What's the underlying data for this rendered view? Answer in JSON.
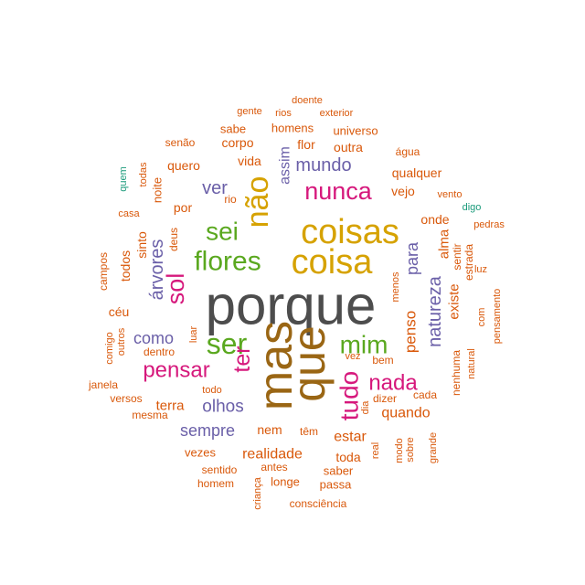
{
  "chart_data": {
    "type": "wordcloud",
    "title": "",
    "colors": {
      "gray": "#4d4d4d",
      "gold": "#d6a200",
      "brown": "#9a6614",
      "pink": "#d6187c",
      "green": "#5aa81f",
      "purple": "#6a5fa8",
      "orange": "#d9580a",
      "teal": "#1a9a7a"
    },
    "words": [
      {
        "text": "porque",
        "color": "gray"
      },
      {
        "text": "coisas",
        "color": "gold"
      },
      {
        "text": "coisa",
        "color": "gold"
      },
      {
        "text": "mas",
        "color": "brown"
      },
      {
        "text": "que",
        "color": "brown"
      },
      {
        "text": "não",
        "color": "gold"
      },
      {
        "text": "nunca",
        "color": "pink"
      },
      {
        "text": "sei",
        "color": "green"
      },
      {
        "text": "flores",
        "color": "green"
      },
      {
        "text": "ser",
        "color": "green"
      },
      {
        "text": "mim",
        "color": "green"
      },
      {
        "text": "sol",
        "color": "pink"
      },
      {
        "text": "tudo",
        "color": "pink"
      },
      {
        "text": "ter",
        "color": "pink"
      },
      {
        "text": "pensar",
        "color": "pink"
      },
      {
        "text": "nada",
        "color": "pink"
      },
      {
        "text": "ver",
        "color": "purple"
      },
      {
        "text": "mundo",
        "color": "purple"
      },
      {
        "text": "natureza",
        "color": "purple"
      },
      {
        "text": "árvores",
        "color": "purple"
      },
      {
        "text": "para",
        "color": "purple"
      },
      {
        "text": "olhos",
        "color": "purple"
      },
      {
        "text": "como",
        "color": "purple"
      },
      {
        "text": "sempre",
        "color": "purple"
      },
      {
        "text": "assim",
        "color": "purple"
      },
      {
        "text": "penso",
        "color": "orange"
      },
      {
        "text": "quando",
        "color": "orange"
      },
      {
        "text": "estar",
        "color": "orange"
      },
      {
        "text": "realidade",
        "color": "orange"
      },
      {
        "text": "terra",
        "color": "orange"
      },
      {
        "text": "qualquer",
        "color": "orange"
      },
      {
        "text": "vejo",
        "color": "orange"
      },
      {
        "text": "onde",
        "color": "orange"
      },
      {
        "text": "alma",
        "color": "orange"
      },
      {
        "text": "existe",
        "color": "orange"
      },
      {
        "text": "nem",
        "color": "orange"
      },
      {
        "text": "toda",
        "color": "orange"
      },
      {
        "text": "outra",
        "color": "orange"
      },
      {
        "text": "flor",
        "color": "orange"
      },
      {
        "text": "corpo",
        "color": "orange"
      },
      {
        "text": "vida",
        "color": "orange"
      },
      {
        "text": "quero",
        "color": "orange"
      },
      {
        "text": "por",
        "color": "orange"
      },
      {
        "text": "homens",
        "color": "orange"
      },
      {
        "text": "universo",
        "color": "orange"
      },
      {
        "text": "sabe",
        "color": "orange"
      },
      {
        "text": "gente",
        "color": "orange"
      },
      {
        "text": "rios",
        "color": "orange"
      },
      {
        "text": "doente",
        "color": "orange"
      },
      {
        "text": "exterior",
        "color": "orange"
      },
      {
        "text": "senão",
        "color": "orange"
      },
      {
        "text": "água",
        "color": "orange"
      },
      {
        "text": "vento",
        "color": "orange"
      },
      {
        "text": "pedras",
        "color": "orange"
      },
      {
        "text": "luz",
        "color": "orange"
      },
      {
        "text": "sentir",
        "color": "orange"
      },
      {
        "text": "estrada",
        "color": "orange"
      },
      {
        "text": "menos",
        "color": "orange"
      },
      {
        "text": "com",
        "color": "orange"
      },
      {
        "text": "pensamento",
        "color": "orange"
      },
      {
        "text": "natural",
        "color": "orange"
      },
      {
        "text": "nenhuma",
        "color": "orange"
      },
      {
        "text": "cada",
        "color": "orange"
      },
      {
        "text": "dizer",
        "color": "orange"
      },
      {
        "text": "dia",
        "color": "orange"
      },
      {
        "text": "vez",
        "color": "orange"
      },
      {
        "text": "bem",
        "color": "orange"
      },
      {
        "text": "modo",
        "color": "orange"
      },
      {
        "text": "sobre",
        "color": "orange"
      },
      {
        "text": "real",
        "color": "orange"
      },
      {
        "text": "grande",
        "color": "orange"
      },
      {
        "text": "têm",
        "color": "orange"
      },
      {
        "text": "saber",
        "color": "orange"
      },
      {
        "text": "passa",
        "color": "orange"
      },
      {
        "text": "longe",
        "color": "orange"
      },
      {
        "text": "antes",
        "color": "orange"
      },
      {
        "text": "sentido",
        "color": "orange"
      },
      {
        "text": "homem",
        "color": "orange"
      },
      {
        "text": "criança",
        "color": "orange"
      },
      {
        "text": "consciência",
        "color": "orange"
      },
      {
        "text": "vezes",
        "color": "orange"
      },
      {
        "text": "mesma",
        "color": "orange"
      },
      {
        "text": "versos",
        "color": "orange"
      },
      {
        "text": "todo",
        "color": "orange"
      },
      {
        "text": "janela",
        "color": "orange"
      },
      {
        "text": "comigo",
        "color": "orange"
      },
      {
        "text": "outros",
        "color": "orange"
      },
      {
        "text": "dentro",
        "color": "orange"
      },
      {
        "text": "luar",
        "color": "orange"
      },
      {
        "text": "céu",
        "color": "orange"
      },
      {
        "text": "campos",
        "color": "orange"
      },
      {
        "text": "todos",
        "color": "orange"
      },
      {
        "text": "sinto",
        "color": "orange"
      },
      {
        "text": "deus",
        "color": "orange"
      },
      {
        "text": "casa",
        "color": "orange"
      },
      {
        "text": "noite",
        "color": "orange"
      },
      {
        "text": "todas",
        "color": "orange"
      },
      {
        "text": "rio",
        "color": "orange"
      },
      {
        "text": "quem",
        "color": "teal"
      },
      {
        "text": "digo",
        "color": "teal"
      }
    ]
  }
}
